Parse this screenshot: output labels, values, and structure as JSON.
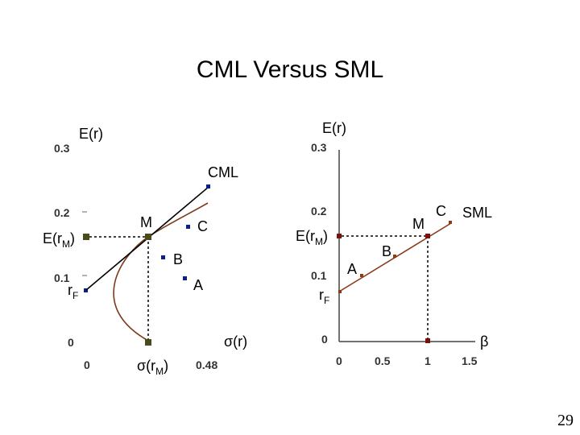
{
  "slide": {
    "title": "CML Versus SML",
    "page_number": "29"
  },
  "colors": {
    "navy": "#0a1f8f",
    "olive": "#4a4a1a",
    "brown": "#8b3a1a",
    "dark_red": "#7a1010"
  },
  "left_chart": {
    "y_axis_title": "E(r)",
    "x_axis_title": "σ(r)",
    "y_ticks": [
      {
        "value": 0.3,
        "label": "0.3"
      },
      {
        "value": 0.2,
        "label": "0.2"
      },
      {
        "value": 0.1,
        "label": "0.1"
      },
      {
        "value": 0,
        "label": "0"
      }
    ],
    "x_ticks": [
      {
        "label": "0"
      },
      {
        "label": "σ(r",
        "sub": "M",
        "tail": ")"
      },
      {
        "label": "0.48"
      }
    ],
    "y_markers": [
      {
        "label": "E(r",
        "sub": "M",
        "tail": ")"
      },
      {
        "label": "r",
        "sub": "F",
        "tail": ""
      }
    ],
    "line_label": "CML",
    "points": [
      {
        "label": "M"
      },
      {
        "label": "C"
      },
      {
        "label": "B"
      },
      {
        "label": "A"
      }
    ]
  },
  "right_chart": {
    "y_axis_title": "E(r)",
    "x_axis_title": "β",
    "y_ticks": [
      {
        "value": 0.3,
        "label": "0.3"
      },
      {
        "value": 0.2,
        "label": "0.2"
      },
      {
        "value": 0.1,
        "label": "0.1"
      },
      {
        "value": 0,
        "label": "0"
      }
    ],
    "x_ticks": [
      {
        "value": 0,
        "label": "0"
      },
      {
        "value": 0.5,
        "label": "0.5"
      },
      {
        "value": 1,
        "label": "1"
      },
      {
        "value": 1.5,
        "label": "1.5"
      }
    ],
    "y_markers": [
      {
        "label": "E(r",
        "sub": "M",
        "tail": ")"
      },
      {
        "label": "r",
        "sub": "F",
        "tail": ""
      }
    ],
    "line_label": "SML",
    "points": [
      {
        "label": "A"
      },
      {
        "label": "B"
      },
      {
        "label": "M"
      },
      {
        "label": "C"
      }
    ]
  }
}
